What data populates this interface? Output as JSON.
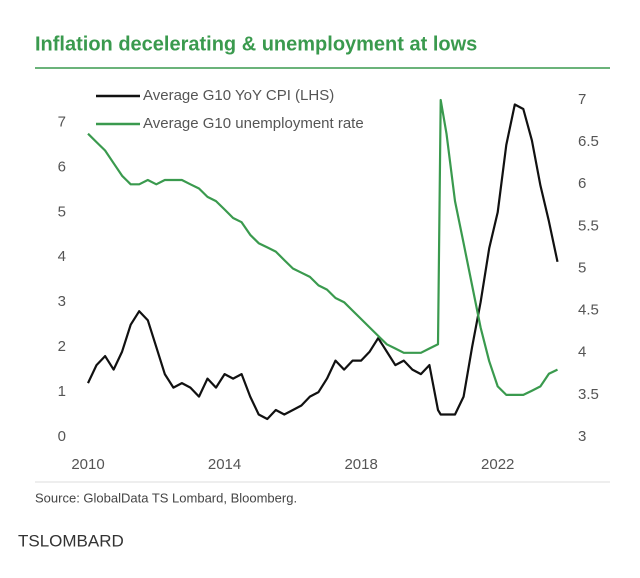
{
  "chart_data": {
    "type": "line",
    "title": "Inflation decelerating & unemployment at lows",
    "source": "Source: GlobalData TS Lombard, Bloomberg.",
    "x": [
      2010,
      2010.25,
      2010.5,
      2010.75,
      2011,
      2011.25,
      2011.5,
      2011.75,
      2012,
      2012.25,
      2012.5,
      2012.75,
      2013,
      2013.25,
      2013.5,
      2013.75,
      2014,
      2014.25,
      2014.5,
      2014.75,
      2015,
      2015.25,
      2015.5,
      2015.75,
      2016,
      2016.25,
      2016.5,
      2016.75,
      2017,
      2017.25,
      2017.5,
      2017.75,
      2018,
      2018.25,
      2018.5,
      2018.75,
      2019,
      2019.25,
      2019.5,
      2019.75,
      2020,
      2020.25,
      2020.33,
      2020.5,
      2020.75,
      2021,
      2021.25,
      2021.5,
      2021.75,
      2022,
      2022.25,
      2022.5,
      2022.75,
      2023,
      2023.25,
      2023.5,
      2023.75
    ],
    "series": [
      {
        "name": "Average G10 YoY CPI (LHS)",
        "color": "#111111",
        "axis": "y",
        "values": [
          1.2,
          1.6,
          1.8,
          1.5,
          1.9,
          2.5,
          2.8,
          2.6,
          2.0,
          1.4,
          1.1,
          1.2,
          1.1,
          0.9,
          1.3,
          1.1,
          1.4,
          1.3,
          1.4,
          0.9,
          0.5,
          0.4,
          0.6,
          0.5,
          0.6,
          0.7,
          0.9,
          1.0,
          1.3,
          1.7,
          1.5,
          1.7,
          1.7,
          1.9,
          2.2,
          1.9,
          1.6,
          1.7,
          1.5,
          1.4,
          1.6,
          0.6,
          0.5,
          0.5,
          0.5,
          0.9,
          2.0,
          3.0,
          4.2,
          5.0,
          6.5,
          7.4,
          7.3,
          6.6,
          5.6,
          4.8,
          3.9
        ]
      },
      {
        "name": "Average G10 unemployment rate",
        "color": "#3a9a4e",
        "axis": "y2",
        "values": [
          6.6,
          6.5,
          6.4,
          6.25,
          6.1,
          6.0,
          6.0,
          6.05,
          6.0,
          6.05,
          6.05,
          6.05,
          6.0,
          5.95,
          5.85,
          5.8,
          5.7,
          5.6,
          5.55,
          5.4,
          5.3,
          5.25,
          5.2,
          5.1,
          5.0,
          4.95,
          4.9,
          4.8,
          4.75,
          4.65,
          4.6,
          4.5,
          4.4,
          4.3,
          4.2,
          4.1,
          4.05,
          4.0,
          4.0,
          4.0,
          4.05,
          4.1,
          7.0,
          6.6,
          5.8,
          5.3,
          4.8,
          4.3,
          3.9,
          3.6,
          3.5,
          3.5,
          3.5,
          3.55,
          3.6,
          3.75,
          3.8
        ]
      }
    ],
    "xlim": [
      2010,
      2024
    ],
    "xticks": [
      2010,
      2014,
      2018,
      2022
    ],
    "ylim": [
      0,
      7.5
    ],
    "yticks": [
      0,
      1,
      2,
      3,
      4,
      5,
      6,
      7
    ],
    "y2lim": [
      3,
      7
    ],
    "y2ticks": [
      3,
      3.5,
      4,
      4.5,
      5,
      5.5,
      6,
      6.5,
      7
    ],
    "legend": "upper left",
    "grid": false
  },
  "brand": "TSLOMBARD"
}
